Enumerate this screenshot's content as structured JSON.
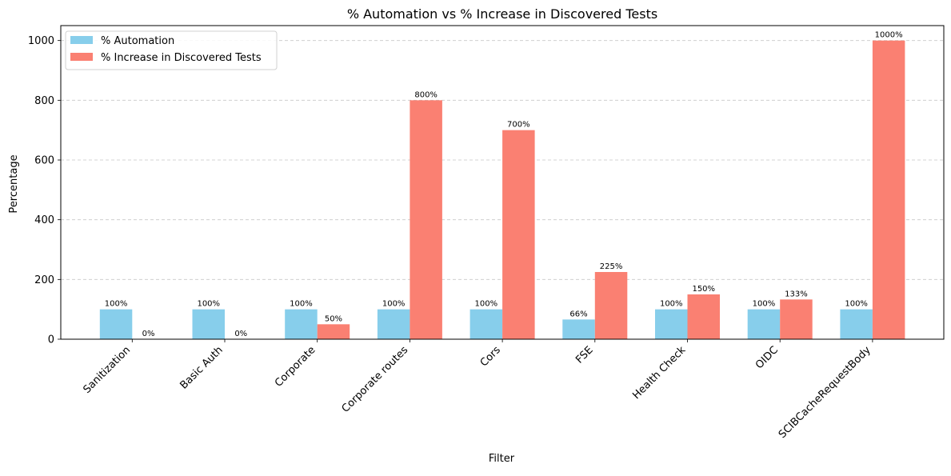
{
  "chart_data": {
    "type": "bar",
    "title": "% Automation vs % Increase in Discovered Tests",
    "xlabel": "Filter",
    "ylabel": "Percentage",
    "categories": [
      "Sanitization",
      "Basic Auth",
      "Corporate",
      "Corporate routes",
      "Cors",
      "FSE",
      "Health Check",
      "OIDC",
      "SCIBCacheRequestBody"
    ],
    "series": [
      {
        "name": "% Automation",
        "color": "#87ceeb",
        "values": [
          100,
          100,
          100,
          100,
          100,
          66,
          100,
          100,
          100
        ],
        "labels": [
          "100%",
          "100%",
          "100%",
          "100%",
          "100%",
          "66%",
          "100%",
          "100%",
          "100%"
        ]
      },
      {
        "name": "% Increase in Discovered Tests",
        "color": "#fa8072",
        "values": [
          0,
          0,
          50,
          800,
          700,
          225,
          150,
          133,
          1000
        ],
        "labels": [
          "0%",
          "0%",
          "50%",
          "800%",
          "700%",
          "225%",
          "150%",
          "133%",
          "1000%"
        ]
      }
    ],
    "ylim": [
      0,
      1050
    ],
    "yticks": [
      0,
      200,
      400,
      600,
      800,
      1000
    ],
    "grid": "y dashed",
    "legend": "top-left"
  }
}
